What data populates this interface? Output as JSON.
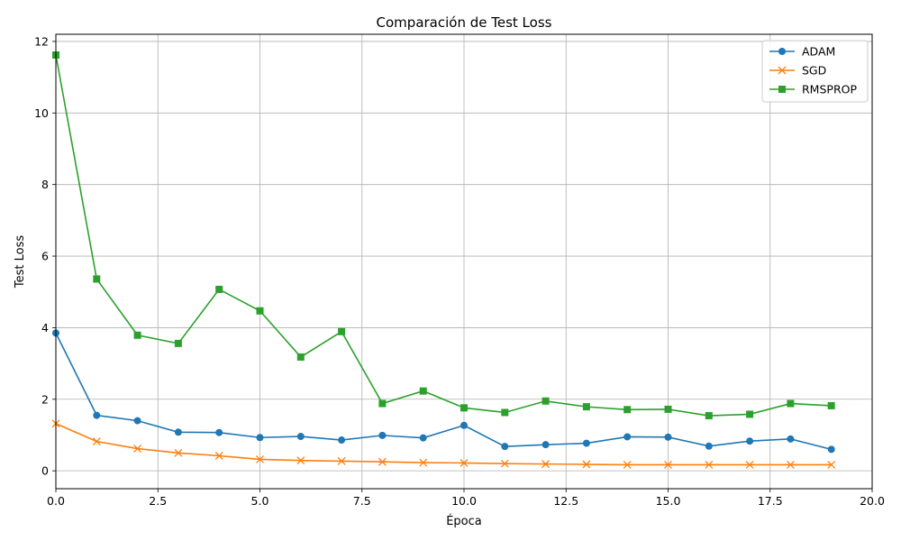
{
  "chart_data": {
    "type": "line",
    "title": "Comparación de Test Loss",
    "xlabel": "Época",
    "ylabel": "Test Loss",
    "xlim": [
      0,
      20
    ],
    "ylim": [
      -0.5,
      12.2
    ],
    "xticks": [
      0,
      2.5,
      5,
      7.5,
      10,
      12.5,
      15,
      17.5,
      20
    ],
    "xtick_labels": [
      "0.0",
      "2.5",
      "5.0",
      "7.5",
      "10.0",
      "12.5",
      "15.0",
      "17.5",
      "20.0"
    ],
    "yticks": [
      0,
      2,
      4,
      6,
      8,
      10,
      12
    ],
    "ytick_labels": [
      "0",
      "2",
      "4",
      "6",
      "8",
      "10",
      "12"
    ],
    "grid": true,
    "legend_position": "top-right",
    "x": [
      0,
      1,
      2,
      3,
      4,
      5,
      6,
      7,
      8,
      9,
      10,
      11,
      12,
      13,
      14,
      15,
      16,
      17,
      18,
      19
    ],
    "series": [
      {
        "name": "ADAM",
        "color": "#1f77b4",
        "marker": "circle",
        "values": [
          3.85,
          1.55,
          1.4,
          1.08,
          1.07,
          0.93,
          0.96,
          0.86,
          0.99,
          0.92,
          1.27,
          0.68,
          0.73,
          0.77,
          0.95,
          0.94,
          0.69,
          0.83,
          0.89,
          0.6
        ]
      },
      {
        "name": "SGD",
        "color": "#ff7f0e",
        "marker": "x",
        "values": [
          1.32,
          0.82,
          0.62,
          0.5,
          0.42,
          0.32,
          0.29,
          0.27,
          0.25,
          0.23,
          0.22,
          0.2,
          0.19,
          0.18,
          0.17,
          0.17,
          0.17,
          0.17,
          0.17,
          0.17
        ]
      },
      {
        "name": "RMSPROP",
        "color": "#2ca02c",
        "marker": "square",
        "values": [
          11.62,
          5.36,
          3.79,
          3.56,
          5.07,
          4.47,
          3.18,
          3.89,
          1.88,
          2.23,
          1.76,
          1.63,
          1.95,
          1.79,
          1.71,
          1.72,
          1.54,
          1.58,
          1.88,
          1.82
        ]
      }
    ]
  }
}
